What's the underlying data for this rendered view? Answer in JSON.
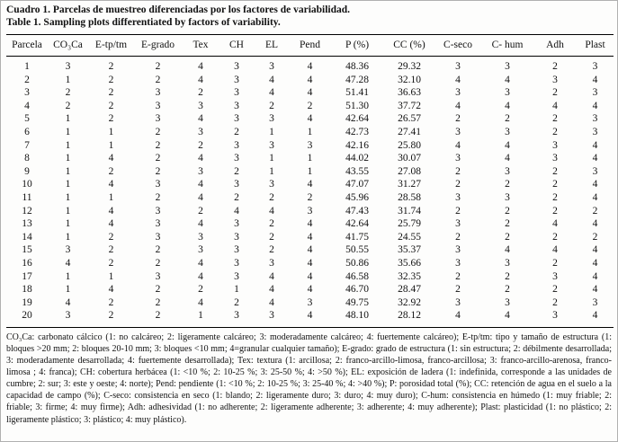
{
  "page": {
    "background": "#fdfdfc",
    "border_color": "#b0b0b0",
    "text_color": "#111111",
    "rule_color": "#000000"
  },
  "caption": {
    "spanish": "Cuadro 1. Parcelas de muestreo diferenciadas por los factores de variabilidad.",
    "english": "Table 1. Sampling plots differentiated by factors of variability."
  },
  "table": {
    "columns": [
      "Parcela",
      "CO₃Ca",
      "E-tp/tm",
      "E-grado",
      "Tex",
      "CH",
      "EL",
      "Pend",
      "P (%)",
      "CC (%)",
      "C-seco",
      "C- hum",
      "Adh",
      "Plast"
    ],
    "rows": [
      [
        "1",
        "3",
        "2",
        "2",
        "4",
        "3",
        "3",
        "4",
        "48.36",
        "29.32",
        "3",
        "3",
        "2",
        "3"
      ],
      [
        "2",
        "1",
        "2",
        "2",
        "4",
        "3",
        "4",
        "4",
        "47.28",
        "32.10",
        "4",
        "4",
        "3",
        "4"
      ],
      [
        "3",
        "2",
        "2",
        "3",
        "2",
        "3",
        "4",
        "4",
        "51.41",
        "36.63",
        "3",
        "3",
        "2",
        "3"
      ],
      [
        "4",
        "2",
        "2",
        "3",
        "3",
        "3",
        "2",
        "2",
        "51.30",
        "37.72",
        "4",
        "4",
        "4",
        "4"
      ],
      [
        "5",
        "1",
        "2",
        "3",
        "4",
        "3",
        "3",
        "4",
        "42.64",
        "26.57",
        "2",
        "2",
        "2",
        "3"
      ],
      [
        "6",
        "1",
        "1",
        "2",
        "3",
        "2",
        "1",
        "1",
        "42.73",
        "27.41",
        "3",
        "3",
        "2",
        "3"
      ],
      [
        "7",
        "1",
        "1",
        "2",
        "2",
        "3",
        "3",
        "3",
        "42.16",
        "25.80",
        "4",
        "4",
        "3",
        "4"
      ],
      [
        "8",
        "1",
        "4",
        "2",
        "4",
        "3",
        "1",
        "1",
        "44.02",
        "30.07",
        "3",
        "4",
        "3",
        "4"
      ],
      [
        "9",
        "1",
        "2",
        "2",
        "3",
        "2",
        "1",
        "1",
        "43.55",
        "27.08",
        "2",
        "3",
        "2",
        "3"
      ],
      [
        "10",
        "1",
        "4",
        "3",
        "4",
        "3",
        "3",
        "4",
        "47.07",
        "31.27",
        "2",
        "2",
        "2",
        "4"
      ],
      [
        "11",
        "1",
        "1",
        "2",
        "4",
        "2",
        "2",
        "2",
        "45.96",
        "28.58",
        "3",
        "3",
        "2",
        "4"
      ],
      [
        "12",
        "1",
        "4",
        "3",
        "2",
        "4",
        "4",
        "3",
        "47.43",
        "31.74",
        "2",
        "2",
        "2",
        "2"
      ],
      [
        "13",
        "1",
        "4",
        "3",
        "4",
        "3",
        "2",
        "4",
        "42.64",
        "25.79",
        "3",
        "2",
        "4",
        "4"
      ],
      [
        "14",
        "1",
        "2",
        "3",
        "3",
        "3",
        "2",
        "4",
        "41.75",
        "24.55",
        "2",
        "2",
        "2",
        "2"
      ],
      [
        "15",
        "3",
        "2",
        "2",
        "3",
        "3",
        "2",
        "4",
        "50.55",
        "35.37",
        "3",
        "4",
        "4",
        "4"
      ],
      [
        "16",
        "4",
        "2",
        "2",
        "4",
        "3",
        "3",
        "4",
        "50.86",
        "35.66",
        "3",
        "3",
        "2",
        "4"
      ],
      [
        "17",
        "1",
        "1",
        "3",
        "4",
        "3",
        "4",
        "4",
        "46.58",
        "32.35",
        "2",
        "2",
        "3",
        "4"
      ],
      [
        "18",
        "1",
        "4",
        "2",
        "2",
        "1",
        "4",
        "4",
        "46.70",
        "28.47",
        "2",
        "2",
        "2",
        "4"
      ],
      [
        "19",
        "4",
        "2",
        "2",
        "4",
        "2",
        "4",
        "3",
        "49.75",
        "32.92",
        "3",
        "3",
        "2",
        "3"
      ],
      [
        "20",
        "3",
        "2",
        "2",
        "1",
        "3",
        "3",
        "4",
        "48.10",
        "28.12",
        "4",
        "4",
        "3",
        "4"
      ]
    ]
  },
  "footnote": "CO₃Ca: carbonato cálcico (1: no calcáreo; 2: ligeramente calcáreo; 3: moderadamente calcáreo; 4: fuertemente calcáreo); E-tp/tm: tipo y tamaño de estructura (1: bloques >20 mm; 2: bloques 20-10 mm; 3: bloques <10 mm; 4=granular cualquier tamaño); E-grado: grado de estructura (1: sin estructura; 2: débilmente desarrollada; 3: moderadamente desarrollada; 4: fuertemente desarrollada); Tex: textura (1: arcillosa; 2: franco-arcillo-limosa, franco-arcillosa; 3: franco-arcillo-arenosa, franco-limosa ; 4: franca); CH: cobertura herbácea (1: <10 %; 2: 10-25 %; 3: 25-50 %; 4: >50 %); EL: exposición de ladera (1: indefinida, corresponde a las unidades de cumbre; 2: sur; 3: este y oeste; 4: norte); Pend: pendiente (1: <10 %; 2: 10-25 %; 3: 25-40 %; 4: >40 %); P: porosidad total (%); CC: retención de agua en el suelo a la capacidad de campo (%); C-seco: consistencia en seco (1: blando; 2: ligeramente duro; 3: duro; 4: muy duro); C-hum: consistencia en húmedo (1: muy friable; 2: friable; 3: firme; 4: muy firme); Adh: adhesividad (1: no adherente; 2: ligeramente adherente; 3: adherente; 4: muy adherente); Plast: plasticidad (1: no plástico; 2: ligeramente plástico; 3: plástico; 4: muy plástico)."
}
